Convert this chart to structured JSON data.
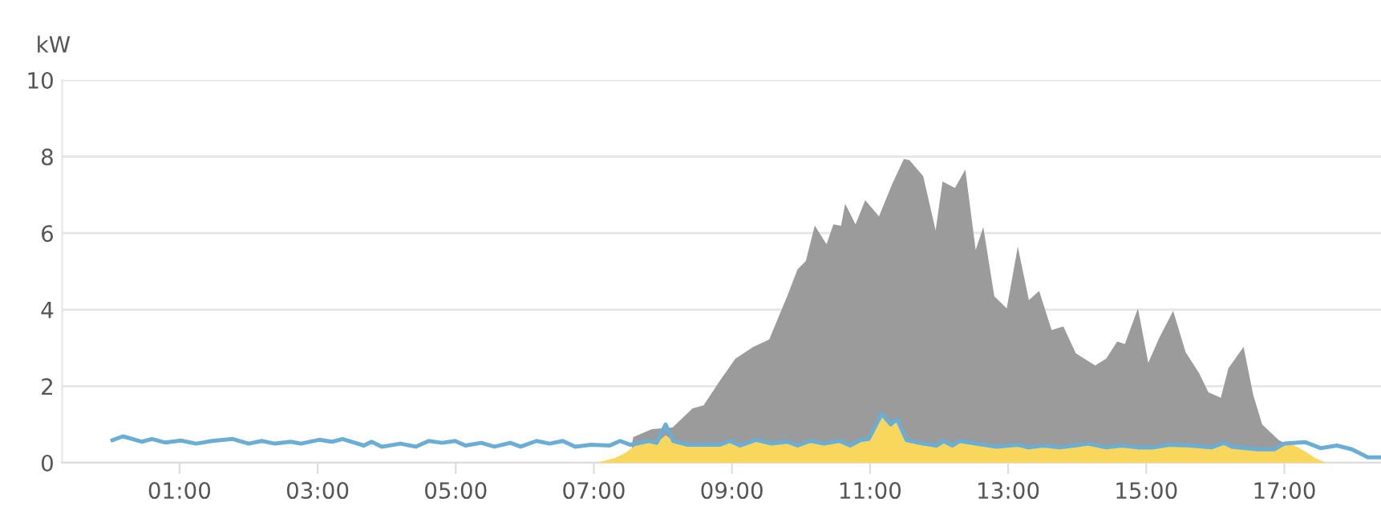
{
  "chart_data": {
    "type": "area",
    "ylabel": "kW",
    "xlim": [
      -0.7,
      18.4
    ],
    "xticks": [
      {
        "value": 1,
        "label": "01:00"
      },
      {
        "value": 3,
        "label": "03:00"
      },
      {
        "value": 5,
        "label": "05:00"
      },
      {
        "value": 7,
        "label": "07:00"
      },
      {
        "value": 9,
        "label": "09:00"
      },
      {
        "value": 11,
        "label": "11:00"
      },
      {
        "value": 13,
        "label": "13:00"
      },
      {
        "value": 15,
        "label": "15:00"
      },
      {
        "value": 17,
        "label": "17:00"
      }
    ],
    "ylim": [
      0,
      10
    ],
    "yticks": [
      0,
      2,
      4,
      6,
      8,
      10
    ],
    "grid": "y",
    "legend": false,
    "series": [
      {
        "color": "#9b9b9b",
        "x": [
          7.55,
          7.57,
          7.84,
          8.14,
          8.43,
          8.59,
          8.82,
          9.05,
          9.31,
          9.54,
          9.8,
          9.95,
          10.07,
          10.2,
          10.37,
          10.47,
          10.58,
          10.64,
          10.79,
          10.93,
          11.13,
          11.32,
          11.49,
          11.57,
          11.77,
          11.95,
          12.05,
          12.23,
          12.38,
          12.53,
          12.64,
          12.8,
          12.98,
          13.14,
          13.3,
          13.45,
          13.63,
          13.8,
          13.98,
          14.26,
          14.42,
          14.58,
          14.69,
          14.88,
          15.03,
          15.18,
          15.39,
          15.57,
          15.77,
          15.9,
          16.08,
          16.19,
          16.41,
          16.55,
          16.68,
          16.92,
          17.08,
          17.18
        ],
        "values": [
          0.45,
          0.67,
          0.88,
          0.92,
          1.42,
          1.5,
          2.13,
          2.72,
          3.03,
          3.22,
          4.35,
          5.05,
          5.27,
          6.2,
          5.71,
          6.23,
          6.19,
          6.77,
          6.23,
          6.86,
          6.44,
          7.28,
          7.94,
          7.91,
          7.49,
          6.07,
          7.35,
          7.18,
          7.66,
          5.56,
          6.16,
          4.35,
          4.03,
          5.65,
          4.25,
          4.49,
          3.47,
          3.56,
          2.86,
          2.54,
          2.72,
          3.17,
          3.1,
          4.03,
          2.61,
          3.23,
          3.97,
          2.89,
          2.33,
          1.84,
          1.7,
          2.47,
          3.03,
          1.77,
          1.0,
          0.59,
          0.45,
          0
        ]
      },
      {
        "color": "#f9d65c",
        "x": [
          7.04,
          7.3,
          7.45,
          7.6,
          7.8,
          7.91,
          8.04,
          8.15,
          8.36,
          8.59,
          8.82,
          8.97,
          9.12,
          9.35,
          9.57,
          9.8,
          9.95,
          10.14,
          10.33,
          10.56,
          10.71,
          10.86,
          10.98,
          11.17,
          11.3,
          11.39,
          11.53,
          11.77,
          11.96,
          12.07,
          12.19,
          12.3,
          12.53,
          12.83,
          13.14,
          13.29,
          13.52,
          13.74,
          13.97,
          14.16,
          14.42,
          14.65,
          14.88,
          15.11,
          15.33,
          15.64,
          15.94,
          16.13,
          16.24,
          16.62,
          16.85,
          17.0,
          17.15,
          17.3,
          17.45,
          17.6
        ],
        "values": [
          0,
          0.12,
          0.25,
          0.45,
          0.57,
          0.52,
          0.72,
          0.57,
          0.47,
          0.47,
          0.47,
          0.57,
          0.45,
          0.6,
          0.5,
          0.55,
          0.45,
          0.57,
          0.5,
          0.57,
          0.45,
          0.59,
          0.62,
          1.28,
          1.0,
          1.14,
          0.59,
          0.5,
          0.45,
          0.57,
          0.45,
          0.57,
          0.5,
          0.42,
          0.47,
          0.4,
          0.45,
          0.4,
          0.45,
          0.5,
          0.4,
          0.45,
          0.4,
          0.4,
          0.47,
          0.45,
          0.4,
          0.52,
          0.42,
          0.35,
          0.35,
          0.5,
          0.45,
          0.3,
          0.12,
          0
        ]
      },
      {
        "type": "line",
        "color": "#6aaed6",
        "x": [
          0.03,
          0.18,
          0.45,
          0.6,
          0.79,
          1.02,
          1.24,
          1.47,
          1.77,
          2.0,
          2.19,
          2.38,
          2.61,
          2.76,
          3.02,
          3.21,
          3.36,
          3.67,
          3.78,
          3.93,
          4.2,
          4.42,
          4.61,
          4.8,
          4.99,
          5.14,
          5.37,
          5.56,
          5.79,
          5.94,
          6.17,
          6.36,
          6.55,
          6.73,
          6.96,
          7.23,
          7.38,
          7.53,
          7.8,
          7.91,
          8.04,
          8.15,
          8.36,
          8.59,
          8.82,
          8.97,
          9.12,
          9.35,
          9.57,
          9.8,
          9.95,
          10.14,
          10.33,
          10.56,
          10.71,
          10.86,
          10.98,
          11.17,
          11.3,
          11.39,
          11.53,
          11.77,
          11.96,
          12.07,
          12.19,
          12.3,
          12.53,
          12.83,
          13.14,
          13.29,
          13.52,
          13.74,
          13.97,
          14.16,
          14.42,
          14.65,
          14.88,
          15.11,
          15.33,
          15.64,
          15.94,
          16.13,
          16.24,
          16.62,
          16.85,
          17.0,
          17.3,
          17.53,
          17.76,
          17.98,
          18.21,
          18.39
        ],
        "values": [
          0.59,
          0.69,
          0.55,
          0.62,
          0.53,
          0.58,
          0.5,
          0.57,
          0.62,
          0.5,
          0.57,
          0.5,
          0.55,
          0.5,
          0.6,
          0.55,
          0.62,
          0.45,
          0.55,
          0.42,
          0.5,
          0.42,
          0.57,
          0.52,
          0.57,
          0.45,
          0.52,
          0.42,
          0.52,
          0.42,
          0.57,
          0.5,
          0.57,
          0.42,
          0.47,
          0.45,
          0.57,
          0.47,
          0.57,
          0.52,
          1.0,
          0.57,
          0.47,
          0.47,
          0.47,
          0.57,
          0.45,
          0.6,
          0.5,
          0.55,
          0.45,
          0.57,
          0.5,
          0.57,
          0.45,
          0.59,
          0.62,
          1.28,
          1.0,
          1.14,
          0.59,
          0.5,
          0.45,
          0.57,
          0.45,
          0.57,
          0.5,
          0.42,
          0.47,
          0.4,
          0.45,
          0.4,
          0.45,
          0.5,
          0.4,
          0.45,
          0.4,
          0.4,
          0.47,
          0.45,
          0.4,
          0.52,
          0.42,
          0.35,
          0.35,
          0.5,
          0.54,
          0.38,
          0.45,
          0.35,
          0.14,
          0.14
        ]
      }
    ]
  }
}
